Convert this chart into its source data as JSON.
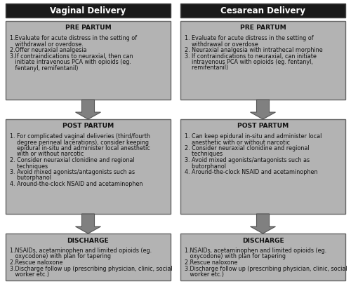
{
  "title_left": "Vaginal Delivery",
  "title_right": "Cesarean Delivery",
  "title_bg": "#1a1a1a",
  "title_fg": "#ffffff",
  "box_bg": "#b3b3b3",
  "box_border": "#666666",
  "arrow_color": "#808080",
  "fig_bg": "#ffffff",
  "left_boxes": [
    {
      "header": "PRE PARTUM",
      "lines": [
        "1.Evaluate for acute distress in the setting of",
        "   withdrawal or overdose.",
        "2.Offer neuraxial analgesia",
        "3.If contraindications to neuraxial, then can",
        "   initiate intravenous PCA with opioids (eg.",
        "   fentanyl, remifentanil)"
      ]
    },
    {
      "header": "POST PARTUM",
      "lines": [
        "1. For complicated vaginal deliveries (third/fourth",
        "    degree perineal lacerations), consider keeping",
        "    epidural in-situ and administer local anesthetic",
        "    with or without narcotic",
        "2. Consider neuraxial clonidine and regional",
        "    techniques",
        "3. Avoid mixed agonists/antagonists such as",
        "    butorphanol",
        "4. Around-the-clock NSAID and acetaminophen"
      ]
    },
    {
      "header": "DISCHARGE",
      "lines": [
        "1.NSAIDs, acetaminophen and limited opioids (eg.",
        "   oxycodone) with plan for tapering",
        "2.Rescue naloxone",
        "3.Discharge follow up (prescribing physician, clinic, social",
        "   worker etc.)"
      ]
    }
  ],
  "right_boxes": [
    {
      "header": "PRE PARTUM",
      "lines": [
        "1. Evaluate for acute distress in the setting of",
        "    withdrawal or overdose",
        "2. Neuraxial analgesia with intrathecal morphine",
        "3. If contraindications to neuraxial, can initiate",
        "    intravenous PCA with opioids (eg. fentanyl,",
        "    remifentanil)"
      ]
    },
    {
      "header": "POST PARTUM",
      "lines": [
        "1. Can keep epidural in-situ and administer local",
        "    anesthetic with or without narcotic",
        "2. Consider neuraxial clonidine and regional",
        "    techniques",
        "3. Avoid mixed agonists/antagonists such as",
        "    butorphanol",
        "4. Around-the-clock NSAID and acetaminophen"
      ]
    },
    {
      "header": "DISCHARGE",
      "lines": [
        "1.NSAIDs, acetaminophen and limited opioids (eg.",
        "   oxycodone) with plan for tapering",
        "2.Rescue naloxone",
        "3.Discharge follow up (prescribing physician, clinic, social",
        "   worker etc.)"
      ]
    }
  ]
}
